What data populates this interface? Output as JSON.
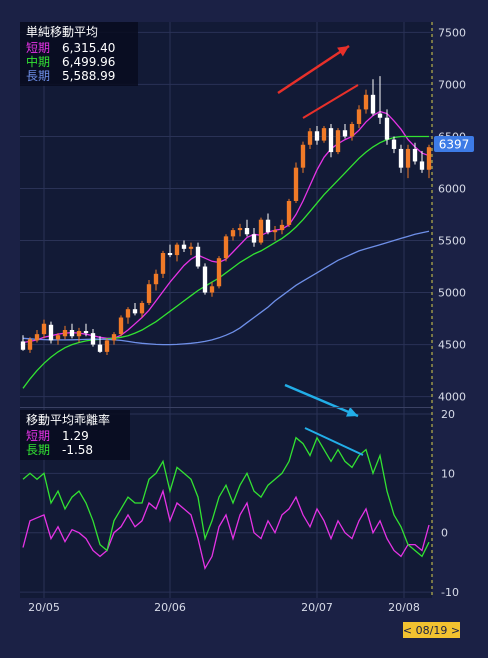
{
  "colors": {
    "background": "#1b2145",
    "plot_bg": "#121a36",
    "up_candle": "#f07a28",
    "down_candle": "#ffffff",
    "short_ma": "#e533e5",
    "mid_ma": "#32e232",
    "long_ma": "#6e8fe8",
    "price_badge": "#3d7be6",
    "date_badge": "#f2c230",
    "annotation_red": "#e8302a",
    "annotation_blue": "#22aee8"
  },
  "price_panel": {
    "title": "単純移動平均",
    "rows": [
      {
        "label": "短期",
        "value": "6,315.40",
        "color": "#e533e5"
      },
      {
        "label": "中期",
        "value": "6,499.96",
        "color": "#32e232"
      },
      {
        "label": "長期",
        "value": "5,588.99",
        "color": "#6e8fe8"
      }
    ],
    "current_price": "6397"
  },
  "dev_panel": {
    "title": "移動平均乖離率",
    "rows": [
      {
        "label": "短期",
        "value": "1.29",
        "color": "#e533e5"
      },
      {
        "label": "長期",
        "value": "-1.58",
        "color": "#32e232"
      }
    ]
  },
  "x_labels": [
    "20/05",
    "20/06",
    "20/07",
    "20/08"
  ],
  "date_badge": "< 08/19 >",
  "chart_data": [
    {
      "type": "candlestick",
      "title": "単純移動平均",
      "ylim": [
        3900,
        7600
      ],
      "yticks": [
        4000,
        4500,
        5000,
        5500,
        6000,
        6500,
        7000,
        7500
      ],
      "x_ticks": [
        "20/05",
        "20/06",
        "20/07",
        "20/08"
      ],
      "current_value": 6397,
      "candles": [
        [
          4530,
          4590,
          4440,
          4450
        ],
        [
          4450,
          4570,
          4420,
          4550
        ],
        [
          4540,
          4640,
          4520,
          4600
        ],
        [
          4600,
          4740,
          4560,
          4700
        ],
        [
          4690,
          4720,
          4510,
          4540
        ],
        [
          4550,
          4610,
          4500,
          4590
        ],
        [
          4580,
          4680,
          4550,
          4640
        ],
        [
          4640,
          4700,
          4560,
          4580
        ],
        [
          4580,
          4660,
          4520,
          4630
        ],
        [
          4630,
          4700,
          4580,
          4610
        ],
        [
          4610,
          4650,
          4480,
          4500
        ],
        [
          4500,
          4580,
          4420,
          4430
        ],
        [
          4430,
          4560,
          4400,
          4540
        ],
        [
          4540,
          4620,
          4500,
          4600
        ],
        [
          4600,
          4780,
          4580,
          4760
        ],
        [
          4760,
          4860,
          4700,
          4840
        ],
        [
          4840,
          4900,
          4780,
          4800
        ],
        [
          4800,
          4920,
          4760,
          4900
        ],
        [
          4900,
          5120,
          4880,
          5080
        ],
        [
          5080,
          5220,
          5020,
          5180
        ],
        [
          5180,
          5400,
          5140,
          5380
        ],
        [
          5380,
          5460,
          5340,
          5360
        ],
        [
          5360,
          5480,
          5300,
          5460
        ],
        [
          5460,
          5500,
          5390,
          5420
        ],
        [
          5420,
          5480,
          5360,
          5440
        ],
        [
          5440,
          5480,
          5230,
          5250
        ],
        [
          5250,
          5280,
          4980,
          5000
        ],
        [
          5000,
          5100,
          4960,
          5060
        ],
        [
          5060,
          5350,
          5040,
          5330
        ],
        [
          5330,
          5560,
          5300,
          5540
        ],
        [
          5540,
          5620,
          5500,
          5600
        ],
        [
          5600,
          5660,
          5540,
          5620
        ],
        [
          5620,
          5700,
          5540,
          5560
        ],
        [
          5560,
          5620,
          5440,
          5480
        ],
        [
          5480,
          5720,
          5460,
          5700
        ],
        [
          5700,
          5760,
          5560,
          5580
        ],
        [
          5580,
          5640,
          5500,
          5600
        ],
        [
          5600,
          5700,
          5560,
          5650
        ],
        [
          5650,
          5900,
          5630,
          5880
        ],
        [
          5880,
          6250,
          5860,
          6200
        ],
        [
          6200,
          6450,
          6150,
          6420
        ],
        [
          6420,
          6580,
          6380,
          6550
        ],
        [
          6550,
          6600,
          6420,
          6460
        ],
        [
          6460,
          6600,
          6440,
          6580
        ],
        [
          6580,
          6620,
          6300,
          6350
        ],
        [
          6350,
          6580,
          6330,
          6560
        ],
        [
          6560,
          6620,
          6480,
          6500
        ],
        [
          6500,
          6640,
          6460,
          6620
        ],
        [
          6620,
          6800,
          6580,
          6760
        ],
        [
          6760,
          6950,
          6720,
          6900
        ],
        [
          6900,
          7050,
          6700,
          6720
        ],
        [
          6720,
          7080,
          6620,
          6680
        ],
        [
          6680,
          6760,
          6420,
          6470
        ],
        [
          6470,
          6500,
          6340,
          6380
        ],
        [
          6380,
          6420,
          6150,
          6200
        ],
        [
          6200,
          6420,
          6100,
          6380
        ],
        [
          6380,
          6440,
          6230,
          6260
        ],
        [
          6260,
          6360,
          6150,
          6180
        ],
        [
          6180,
          6420,
          6100,
          6397
        ]
      ],
      "series": [
        {
          "name": "短期",
          "values": [
            4520,
            4530,
            4545,
            4570,
            4585,
            4600,
            4610,
            4615,
            4610,
            4600,
            4585,
            4570,
            4560,
            4560,
            4590,
            4640,
            4700,
            4760,
            4830,
            4920,
            5010,
            5100,
            5180,
            5260,
            5320,
            5360,
            5330,
            5300,
            5290,
            5320,
            5390,
            5460,
            5530,
            5560,
            5550,
            5580,
            5600,
            5610,
            5650,
            5750,
            5880,
            6030,
            6180,
            6300,
            6380,
            6430,
            6470,
            6500,
            6560,
            6640,
            6700,
            6740,
            6720,
            6650,
            6570,
            6470,
            6400,
            6340,
            6315
          ]
        },
        {
          "name": "中期",
          "values": [
            4080,
            4170,
            4250,
            4320,
            4380,
            4430,
            4470,
            4500,
            4520,
            4535,
            4545,
            4550,
            4555,
            4560,
            4570,
            4585,
            4610,
            4640,
            4680,
            4720,
            4770,
            4820,
            4870,
            4920,
            4970,
            5020,
            5060,
            5100,
            5140,
            5190,
            5240,
            5290,
            5330,
            5370,
            5400,
            5440,
            5480,
            5520,
            5570,
            5630,
            5700,
            5780,
            5860,
            5940,
            6010,
            6080,
            6150,
            6220,
            6290,
            6350,
            6400,
            6440,
            6470,
            6490,
            6500,
            6500,
            6500,
            6500,
            6500
          ]
        },
        {
          "name": "長期",
          "values": [
            4560,
            4555,
            4550,
            4548,
            4546,
            4545,
            4545,
            4546,
            4548,
            4550,
            4552,
            4552,
            4550,
            4546,
            4540,
            4530,
            4520,
            4512,
            4506,
            4502,
            4500,
            4500,
            4502,
            4506,
            4512,
            4520,
            4530,
            4545,
            4565,
            4590,
            4620,
            4660,
            4710,
            4760,
            4810,
            4860,
            4920,
            4970,
            5020,
            5070,
            5110,
            5150,
            5190,
            5230,
            5270,
            5310,
            5340,
            5370,
            5400,
            5420,
            5440,
            5460,
            5480,
            5500,
            5520,
            5540,
            5560,
            5575,
            5589
          ]
        }
      ]
    },
    {
      "type": "line",
      "title": "移動平均乖離率",
      "ylim": [
        -11,
        21
      ],
      "yticks": [
        -10,
        0,
        10,
        20
      ],
      "series": [
        {
          "name": "短期",
          "values": [
            -2.5,
            2,
            2.5,
            3,
            -1,
            1,
            -1.5,
            0.5,
            0,
            -1,
            -3,
            -4,
            -3,
            0,
            1,
            3,
            1,
            2,
            5,
            4,
            7,
            2,
            5,
            4,
            3,
            -1,
            -6,
            -4,
            1,
            3,
            -1,
            3,
            5,
            0,
            -1,
            2,
            0,
            3,
            4,
            6,
            3,
            1,
            4,
            2,
            -1,
            2,
            0,
            -1,
            2,
            4,
            0,
            2,
            -1,
            -3,
            -4,
            -2,
            -2,
            -3,
            1.3
          ]
        },
        {
          "name": "長期",
          "values": [
            9,
            10,
            9,
            10,
            5,
            7,
            4,
            6,
            7,
            5,
            2,
            -2,
            -3,
            2,
            4,
            6,
            5,
            5,
            9,
            10,
            12,
            7,
            11,
            10,
            9,
            6,
            -1,
            2,
            6,
            8,
            5,
            8,
            10,
            7,
            6,
            8,
            9,
            10,
            12,
            16,
            15,
            13,
            16,
            14,
            12,
            14,
            12,
            11,
            13,
            14,
            10,
            13,
            7,
            3,
            1,
            -2,
            -3,
            -4,
            -1.6
          ]
        }
      ]
    }
  ]
}
